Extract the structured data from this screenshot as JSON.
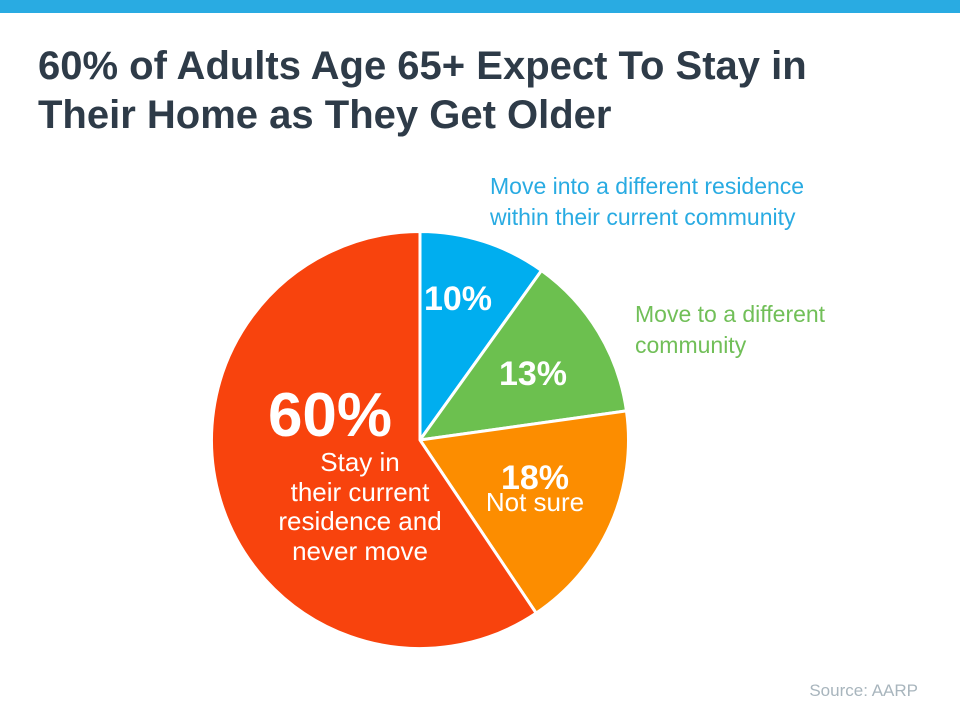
{
  "page": {
    "background_color": "#FFFFFF",
    "top_bar_color": "#29ABE2"
  },
  "header": {
    "title": "60% of Adults Age 65+ Expect To Stay in\nTheir Home as They Get Older",
    "title_color": "#2E3B48"
  },
  "chart_data": {
    "type": "pie",
    "title": "60% of Adults Age 65+ Expect To Stay in Their Home as They Get Older",
    "start_angle_deg": -90,
    "direction": "clockwise",
    "stroke_color": "#FFFFFF",
    "stroke_width": 3,
    "legend_position": "callouts-outside-and-labels-inside",
    "slices": [
      {
        "label": "Move into a different residence within their current community",
        "value_pct": 10,
        "value_label": "10%",
        "color": "#00AEEF"
      },
      {
        "label": "Move to a different community",
        "value_pct": 13,
        "value_label": "13%",
        "color": "#6CC04F"
      },
      {
        "label": "Not sure",
        "value_pct": 18,
        "value_label": "18%",
        "color": "#FC8D00"
      },
      {
        "label": "Stay in their current residence and never move",
        "value_pct": 60,
        "value_label": "60%",
        "color": "#F8430D"
      }
    ],
    "source": "Source: AARP"
  },
  "pie_labels": {
    "blue_pct": "10%",
    "green_pct": "13%",
    "orange_pct": "18%",
    "orange_sub": "Not sure",
    "red_pct": "60%",
    "red_sub": "Stay in\ntheir current\nresidence and\nnever move"
  },
  "callouts": {
    "blue_text": "Move into a different residence\nwithin their current community",
    "blue_color": "#29ABE2",
    "green_text": "Move to a different\ncommunity",
    "green_color": "#71BF58"
  },
  "footer": {
    "source": "Source: AARP",
    "color": "#A8B5BD"
  }
}
